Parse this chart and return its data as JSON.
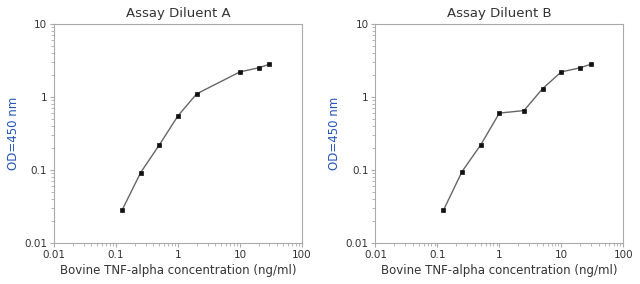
{
  "panel_a": {
    "title": "Assay Diluent A",
    "x": [
      0.125,
      0.25,
      0.5,
      1.0,
      2.0,
      10.0,
      20.0,
      30.0
    ],
    "y": [
      0.028,
      0.092,
      0.22,
      0.55,
      1.1,
      2.2,
      2.5,
      2.8
    ]
  },
  "panel_b": {
    "title": "Assay Diluent B",
    "x": [
      0.125,
      0.25,
      0.5,
      1.0,
      2.5,
      5.0,
      10.0,
      20.0,
      30.0
    ],
    "y": [
      0.028,
      0.095,
      0.22,
      0.6,
      0.65,
      1.3,
      2.2,
      2.5,
      2.8
    ]
  },
  "xlabel": "Bovine TNF-alpha concentration (ng/ml)",
  "ylabel": "OD=450 nm",
  "xlim": [
    0.01,
    100
  ],
  "ylim": [
    0.01,
    10
  ],
  "xticks": [
    0.01,
    0.1,
    1,
    10,
    100
  ],
  "yticks": [
    0.01,
    0.1,
    1,
    10
  ],
  "xtick_labels": [
    "0.01",
    "0.1",
    "1",
    "10",
    "100"
  ],
  "ytick_labels": [
    "0.01",
    "0.1",
    "1",
    "10"
  ],
  "line_color": "#666666",
  "marker_color": "#111111",
  "title_color": "#333333",
  "ylabel_color": "#2255bb",
  "xlabel_color": "#333333",
  "tick_color": "#333333",
  "axis_color": "#aaaaaa",
  "background_color": "#ffffff"
}
